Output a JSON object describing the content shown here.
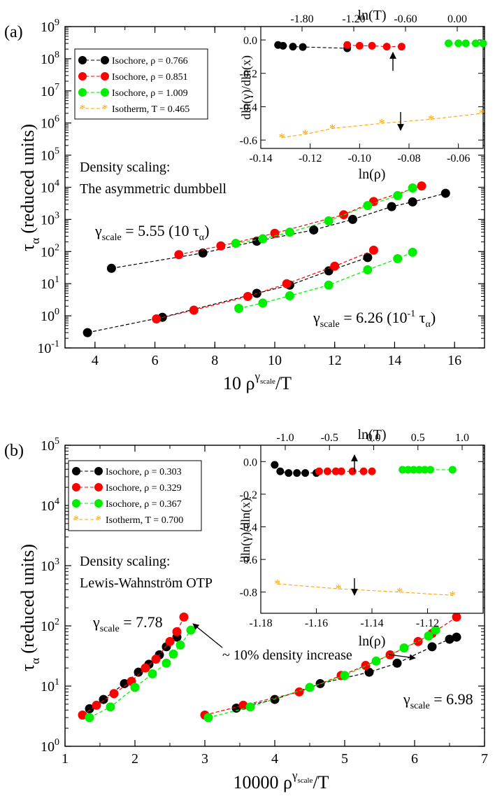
{
  "chart_data": [
    {
      "panel_label": "(a)",
      "type": "scatter",
      "scale": "log-y",
      "xlabel_prefix": "10 ρ",
      "xlabel_sup": "γ",
      "xlabel_sup_sub": "scale",
      "xlabel_suffix": "/T",
      "ylabel_main": "τ",
      "ylabel_sub": "α",
      "ylabel_units": "(reduced units)",
      "xlim": [
        3,
        17
      ],
      "ylog_lim": [
        -1,
        9
      ],
      "xticks": [
        "4",
        "6",
        "8",
        "10",
        "12",
        "14",
        "16"
      ],
      "ytick_exps": [
        "-1",
        "0",
        "1",
        "2",
        "3",
        "4",
        "5",
        "6",
        "7",
        "8",
        "9"
      ],
      "ytick_base": "10",
      "legend": [
        {
          "label": "Isochore, ρ = 0.766",
          "color": "#000000",
          "marker": "circle"
        },
        {
          "label": "Isochore, ρ = 0.851",
          "color": "#ff0000",
          "marker": "circle"
        },
        {
          "label": "Isochore, ρ = 1.009",
          "color": "#00ee00",
          "marker": "circle"
        },
        {
          "label": "Isotherm, T = 0.465",
          "color": "#ffa500",
          "marker": "star"
        }
      ],
      "annotation_title_1": "Density scaling:",
      "annotation_title_2": "The asymmetric dumbbell",
      "annotation_gamma_upper": {
        "g": "γ",
        "sub": "scale",
        "text": " = 5.55 (10 τ",
        "sub2": "α",
        "close": ")"
      },
      "annotation_gamma_lower": {
        "g": "γ",
        "sub": "scale",
        "text": " = 6.26 (10",
        "sup": "-1",
        "text2": " τ",
        "sub2": "α",
        "close": ")"
      },
      "series": [
        {
          "color": "#000000",
          "points": [
            [
              4.55,
              30
            ],
            [
              7.6,
              90
            ],
            [
              9.4,
              210
            ],
            [
              11.3,
              470
            ],
            [
              12.6,
              1000
            ],
            [
              13.9,
              2500
            ],
            [
              14.6,
              3500
            ],
            [
              15.7,
              6500
            ]
          ]
        },
        {
          "color": "#ff0000",
          "points": [
            [
              6.8,
              80
            ],
            [
              8.2,
              150
            ],
            [
              10.0,
              370
            ],
            [
              12.3,
              1400
            ],
            [
              13.3,
              3600
            ],
            [
              14.9,
              11000
            ]
          ]
        },
        {
          "color": "#00ee00",
          "points": [
            [
              8.7,
              180
            ],
            [
              9.6,
              250
            ],
            [
              10.5,
              400
            ],
            [
              11.8,
              900
            ],
            [
              13.1,
              2700
            ],
            [
              14.1,
              5500
            ],
            [
              14.6,
              9500
            ]
          ]
        },
        {
          "color": "#000000",
          "points": [
            [
              3.75,
              0.3
            ],
            [
              6.25,
              0.9
            ],
            [
              9.4,
              5
            ],
            [
              10.5,
              9
            ],
            [
              11.8,
              25
            ],
            [
              13.1,
              65
            ]
          ]
        },
        {
          "color": "#ff0000",
          "points": [
            [
              6.05,
              0.8
            ],
            [
              7.3,
              1.5
            ],
            [
              9.1,
              4
            ],
            [
              10.4,
              10
            ],
            [
              12.0,
              35
            ],
            [
              13.3,
              110
            ]
          ]
        },
        {
          "color": "#00ee00",
          "points": [
            [
              8.8,
              1.7
            ],
            [
              9.6,
              2.5
            ],
            [
              10.5,
              4.2
            ],
            [
              11.8,
              9
            ],
            [
              13.1,
              27
            ],
            [
              14.1,
              60
            ],
            [
              14.6,
              95
            ]
          ]
        }
      ],
      "inset": {
        "xlabel": "ln(ρ)",
        "ylabel": "dln(γ)/dln(x)",
        "toplabel": "ln(T)",
        "xlim": [
          -0.14,
          -0.05
        ],
        "ylim": [
          -0.65,
          0.08
        ],
        "xticks": [
          "-0.14",
          "-0.12",
          "-0.10",
          "-0.08",
          "-0.06"
        ],
        "yticks": [
          "0.0",
          "-0.2",
          "-0.4",
          "-0.6"
        ],
        "top_ticks": [
          "-1.80",
          "-1.20",
          "-0.60",
          "0.00"
        ],
        "series": [
          {
            "color": "#000000",
            "points": [
              [
                -0.133,
                -0.03
              ],
              [
                -0.131,
                -0.035
              ],
              [
                -0.127,
                -0.04
              ],
              [
                -0.123,
                -0.042
              ],
              [
                -0.105,
                -0.05
              ]
            ]
          },
          {
            "color": "#ff0000",
            "points": [
              [
                -0.105,
                -0.03
              ],
              [
                -0.1,
                -0.035
              ],
              [
                -0.095,
                -0.035
              ],
              [
                -0.089,
                -0.04
              ],
              [
                -0.083,
                -0.04
              ]
            ]
          },
          {
            "color": "#00ee00",
            "points": [
              [
                -0.064,
                -0.02
              ],
              [
                -0.06,
                -0.02
              ],
              [
                -0.057,
                -0.02
              ],
              [
                -0.053,
                -0.02
              ],
              [
                -0.05,
                -0.02
              ]
            ]
          },
          {
            "color": "#ffa500",
            "points": [
              [
                -0.1315,
                -0.585
              ],
              [
                -0.122,
                -0.565
              ],
              [
                -0.111,
                -0.53
              ],
              [
                -0.091,
                -0.5
              ],
              [
                -0.071,
                -0.475
              ],
              [
                -0.0505,
                -0.44
              ]
            ]
          }
        ]
      }
    },
    {
      "panel_label": "(b)",
      "type": "scatter",
      "scale": "log-y",
      "xlabel_prefix": "10000 ρ",
      "xlabel_sup": "γ",
      "xlabel_sup_sub": "scale",
      "xlabel_suffix": "/T",
      "ylabel_main": "τ",
      "ylabel_sub": "α",
      "ylabel_units": "(reduced units)",
      "xlim": [
        1,
        7
      ],
      "ylog_lim": [
        0,
        5
      ],
      "xticks": [
        "1",
        "2",
        "3",
        "4",
        "5",
        "6",
        "7"
      ],
      "ytick_exps": [
        "0",
        "1",
        "2",
        "3",
        "4",
        "5"
      ],
      "ytick_base": "10",
      "legend": [
        {
          "label": "Isochore, ρ = 0.303",
          "color": "#000000",
          "marker": "circle"
        },
        {
          "label": "Isochore, ρ = 0.329",
          "color": "#ff0000",
          "marker": "circle"
        },
        {
          "label": "Isochore, ρ = 0.367",
          "color": "#00ee00",
          "marker": "circle"
        },
        {
          "label": "Isotherm, T = 0.700",
          "color": "#ffa500",
          "marker": "star"
        }
      ],
      "annotation_title_1": "Density scaling:",
      "annotation_title_2": "Lewis-Wahnström OTP",
      "annotation_gamma_left": {
        "g": "γ",
        "sub": "scale",
        "text": " = 7.78"
      },
      "annotation_gamma_right": {
        "g": "γ",
        "sub": "scale",
        "text": " = 6.98"
      },
      "annotation_arrow": "~ 10% density increase",
      "series": [
        {
          "color": "#000000",
          "points": [
            [
              1.35,
              4.2
            ],
            [
              1.55,
              6
            ],
            [
              1.85,
              11
            ],
            [
              2.05,
              17
            ],
            [
              2.2,
              23
            ],
            [
              2.35,
              33
            ],
            [
              2.45,
              45
            ],
            [
              2.6,
              65
            ]
          ]
        },
        {
          "color": "#ff0000",
          "points": [
            [
              1.25,
              3.3
            ],
            [
              1.45,
              4.8
            ],
            [
              1.7,
              7.5
            ],
            [
              1.95,
              12
            ],
            [
              2.15,
              20
            ],
            [
              2.3,
              28
            ],
            [
              2.5,
              55
            ],
            [
              2.6,
              80
            ],
            [
              2.7,
              140
            ]
          ]
        },
        {
          "color": "#00ee00",
          "points": [
            [
              1.35,
              3
            ],
            [
              1.65,
              4.5
            ],
            [
              2.0,
              9.5
            ],
            [
              2.25,
              16
            ],
            [
              2.45,
              24
            ],
            [
              2.55,
              34
            ],
            [
              2.65,
              48
            ],
            [
              2.8,
              85
            ]
          ]
        },
        {
          "color": "#000000",
          "points": [
            [
              3.45,
              4.3
            ],
            [
              4.0,
              6
            ],
            [
              4.65,
              11
            ],
            [
              5.35,
              17
            ],
            [
              5.75,
              24
            ],
            [
              6.25,
              45
            ],
            [
              6.5,
              60
            ],
            [
              6.6,
              65
            ]
          ]
        },
        {
          "color": "#ff0000",
          "points": [
            [
              3.0,
              3.3
            ],
            [
              3.55,
              4.8
            ],
            [
              4.35,
              8
            ],
            [
              4.95,
              15
            ],
            [
              5.3,
              22
            ],
            [
              5.65,
              33
            ],
            [
              6.05,
              55
            ],
            [
              6.25,
              75
            ],
            [
              6.6,
              140
            ]
          ]
        },
        {
          "color": "#00ee00",
          "points": [
            [
              3.05,
              3
            ],
            [
              3.65,
              4.5
            ],
            [
              4.5,
              9.5
            ],
            [
              5.0,
              15
            ],
            [
              5.45,
              26
            ],
            [
              5.85,
              43
            ],
            [
              6.2,
              68
            ],
            [
              6.3,
              85
            ]
          ]
        }
      ],
      "inset": {
        "xlabel": "ln(ρ)",
        "ylabel": "dln(γ)/dln(x)",
        "toplabel": "ln(T)",
        "xlim": [
          -1.18,
          -1.1
        ],
        "ylim": [
          -0.93,
          0.1
        ],
        "xticks": [
          "-1.18",
          "-1.16",
          "-1.14",
          "-1.12"
        ],
        "yticks": [
          "0.0",
          "-0.2",
          "-0.4",
          "-0.6",
          "-0.8"
        ],
        "top_ticks": [
          "-1.0",
          "-0.5",
          "0.0",
          "0.5",
          "1.0"
        ],
        "series": [
          {
            "color": "#000000",
            "points": [
              [
                -1.175,
                -0.02
              ],
              [
                -1.173,
                -0.06
              ],
              [
                -1.17,
                -0.07
              ],
              [
                -1.167,
                -0.07
              ],
              [
                -1.164,
                -0.07
              ],
              [
                -1.16,
                -0.07
              ]
            ]
          },
          {
            "color": "#ff0000",
            "points": [
              [
                -1.159,
                -0.06
              ],
              [
                -1.156,
                -0.06
              ],
              [
                -1.153,
                -0.06
              ],
              [
                -1.151,
                -0.06
              ],
              [
                -1.147,
                -0.06
              ],
              [
                -1.143,
                -0.06
              ],
              [
                -1.14,
                -0.06
              ]
            ]
          },
          {
            "color": "#00ee00",
            "points": [
              [
                -1.129,
                -0.05
              ],
              [
                -1.127,
                -0.05
              ],
              [
                -1.125,
                -0.05
              ],
              [
                -1.123,
                -0.05
              ],
              [
                -1.121,
                -0.05
              ],
              [
                -1.119,
                -0.05
              ],
              [
                -1.111,
                -0.05
              ]
            ]
          },
          {
            "color": "#ffa500",
            "points": [
              [
                -1.174,
                -0.75
              ],
              [
                -1.152,
                -0.78
              ],
              [
                -1.13,
                -0.8
              ],
              [
                -1.111,
                -0.82
              ]
            ]
          }
        ]
      }
    }
  ]
}
